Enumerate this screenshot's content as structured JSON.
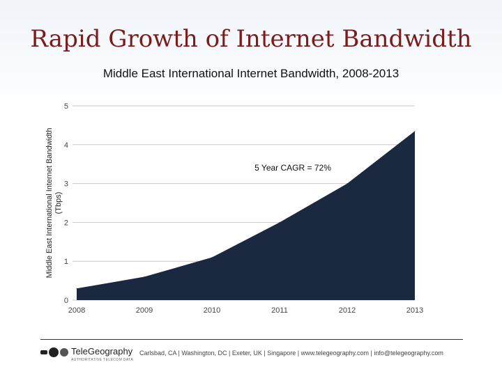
{
  "slide": {
    "title": "Rapid Growth of Internet Bandwidth"
  },
  "footer": {
    "logo_text": "TeleGeography",
    "logo_tagline": "AUTHORITATIVE TELECOM DATA",
    "contact": "Carlsbad, CA | Washington, DC | Exeter, UK | Singapore | www.telegeography.com | info@telegeography.com"
  },
  "colors": {
    "title": "#7a1c1c",
    "area_fill": "#1a2840",
    "gridline": "#c8c8c8"
  },
  "chart_data": {
    "type": "area",
    "title": "Middle East International Internet Bandwidth, 2008-2013",
    "xlabel": "",
    "ylabel_lines": [
      "Middle East International Internet Bandwidth",
      "(Tbps)"
    ],
    "x": [
      "2008",
      "2009",
      "2010",
      "2011",
      "2012",
      "2013"
    ],
    "x_ticks": [
      "2008",
      "2009",
      "2010",
      "2011",
      "2012",
      "2013"
    ],
    "y_ticks": [
      "0",
      "1",
      "2",
      "3",
      "4",
      "5"
    ],
    "series": [
      {
        "values": [
          0.3,
          0.6,
          1.1,
          2.0,
          3.0,
          4.35
        ]
      }
    ],
    "ylim": [
      0,
      5
    ],
    "grid": true,
    "annotation": "5 Year CAGR = 72%"
  }
}
